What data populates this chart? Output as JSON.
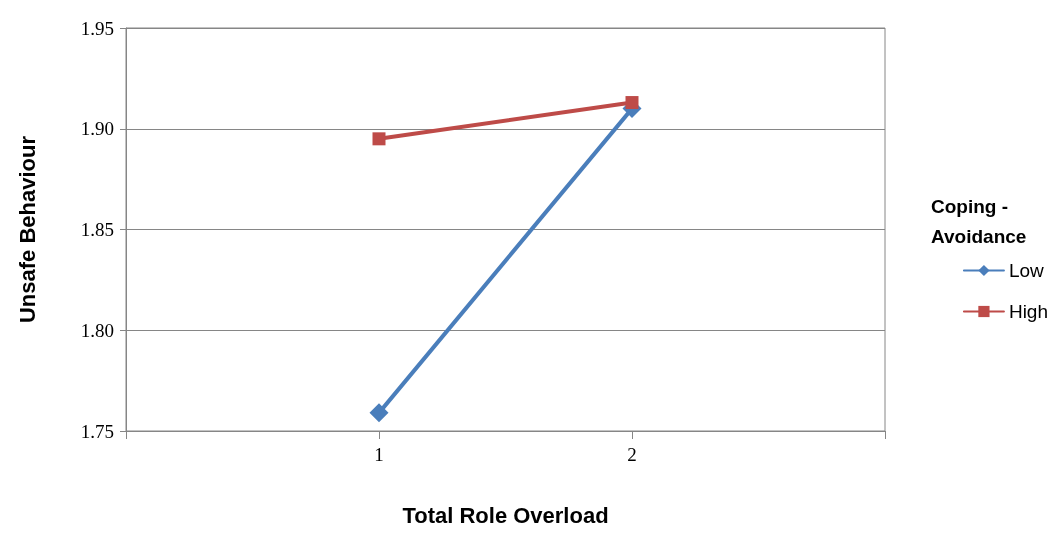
{
  "chart_data": {
    "type": "line",
    "xlabel": "Total Role Overload",
    "ylabel": "Unsafe Behaviour",
    "legend_title": "Coping - Avoidance",
    "x": [
      1,
      2
    ],
    "series": [
      {
        "name": "Low",
        "color": "#4a7ebb",
        "marker": "diamond",
        "values": [
          1.759,
          1.91
        ]
      },
      {
        "name": "High",
        "color": "#be4b48",
        "marker": "square",
        "values": [
          1.895,
          1.913
        ]
      }
    ],
    "xlim": [
      0,
      3
    ],
    "xticks": [
      {
        "value": 0,
        "label": null
      },
      1,
      2,
      {
        "value": 3,
        "label": null
      }
    ],
    "ylim": [
      1.75,
      1.95
    ],
    "yticks": [
      {
        "value": 1.75,
        "label": "1.75"
      },
      {
        "value": 1.8,
        "label": "1.80"
      },
      {
        "value": 1.85,
        "label": "1.85"
      },
      {
        "value": 1.9,
        "label": "1.90"
      },
      {
        "value": 1.95,
        "label": "1.95"
      }
    ],
    "grid": "y",
    "legend": "right",
    "line_style": "solid"
  }
}
